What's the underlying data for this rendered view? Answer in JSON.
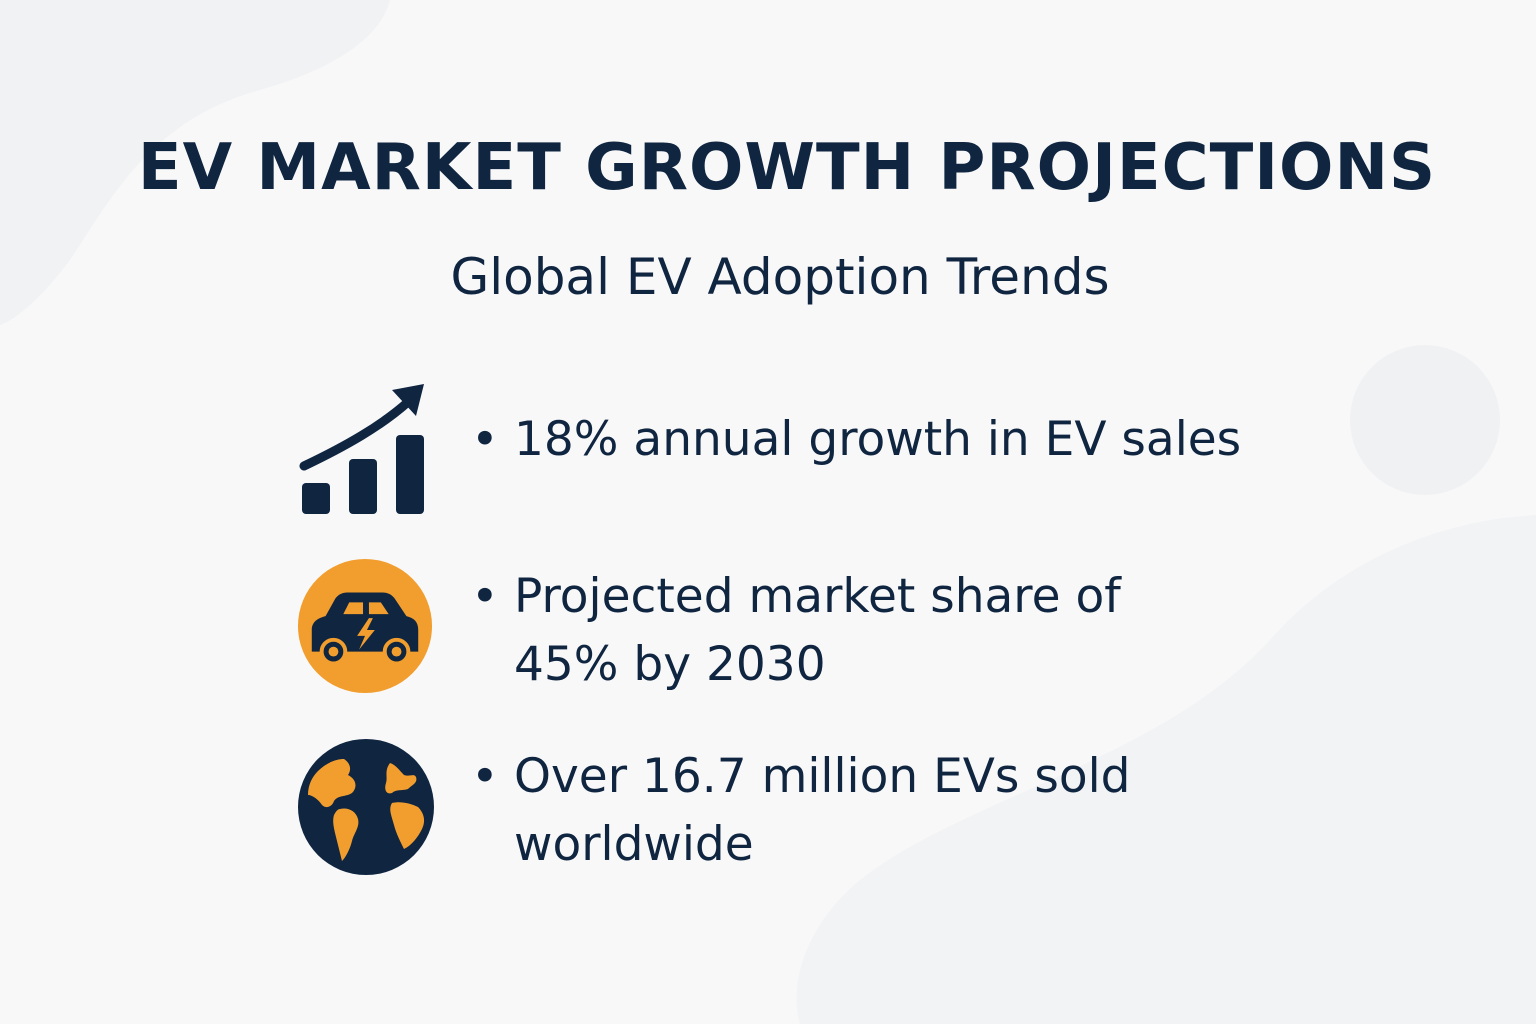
{
  "title": "EV MARKET GROWTH PROJECTIONS",
  "subtitle": "Global EV Adoption Trends",
  "items": [
    {
      "icon": "growth-chart-icon",
      "bullet": "•",
      "lines": [
        "18% annual growth in EV sales"
      ]
    },
    {
      "icon": "electric-car-icon",
      "bullet": "•",
      "lines": [
        "Projected market share of",
        "45% by 2030"
      ]
    },
    {
      "icon": "globe-icon",
      "bullet": "•",
      "lines": [
        "Over 16.7 million EVs sold",
        "worldwide"
      ]
    }
  ],
  "colors": {
    "navy": "#0f2540",
    "orange": "#f29e2e",
    "background": "#f8f8f9"
  }
}
